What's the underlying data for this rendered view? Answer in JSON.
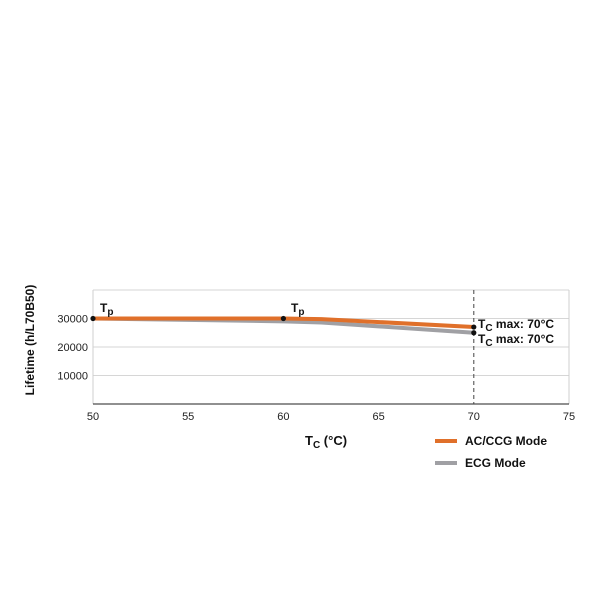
{
  "chart_data": {
    "type": "line",
    "title": "",
    "xlabel_main": "T",
    "xlabel_sub": "C",
    "xlabel_rest": " (°C)",
    "ylabel": "Lifetime (h/L70B50)",
    "xlim": [
      50,
      75
    ],
    "ylim": [
      0,
      40000
    ],
    "x_ticks": [
      "50",
      "55",
      "60",
      "65",
      "70",
      "75"
    ],
    "y_ticks": [
      "10000",
      "20000",
      "30000"
    ],
    "grid": "horizontal",
    "legend_position": "bottom-right",
    "series": [
      {
        "name": "ECG Mode",
        "color": "#a0a0a4",
        "points": [
          [
            50,
            30000
          ],
          [
            60,
            29000
          ],
          [
            62,
            28600
          ],
          [
            70,
            25000
          ]
        ]
      },
      {
        "name": "AC/CCG Mode",
        "color": "#e0702a",
        "points": [
          [
            50,
            30000
          ],
          [
            60,
            30000
          ],
          [
            62,
            29800
          ],
          [
            70,
            27000
          ]
        ]
      }
    ],
    "markers": [
      [
        50,
        30000
      ],
      [
        60,
        30000
      ],
      [
        70,
        27000
      ],
      [
        70,
        25000
      ]
    ],
    "vline_x": 70,
    "annotations": {
      "tp1": {
        "main": "T",
        "sub": "p"
      },
      "tp2": {
        "main": "T",
        "sub": "p"
      },
      "tc1": {
        "main": "T",
        "sub": "C",
        "rest": " max: 70°C"
      },
      "tc2": {
        "main": "T",
        "sub": "C",
        "rest": " max: 70°C"
      }
    }
  }
}
